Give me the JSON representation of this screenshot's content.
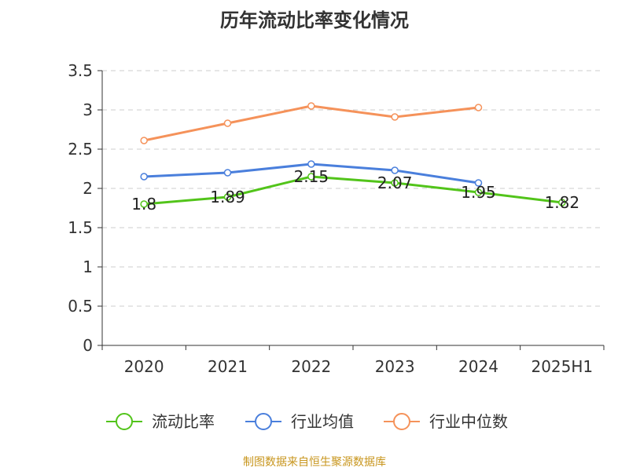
{
  "chart_data": {
    "type": "line",
    "title": "历年流动比率变化情况",
    "categories": [
      "2020",
      "2021",
      "2022",
      "2023",
      "2024",
      "2025H1"
    ],
    "ylim": [
      0,
      3.5
    ],
    "yticks": [
      "0",
      "0.5",
      "1",
      "1.5",
      "2",
      "2.5",
      "3",
      "3.5"
    ],
    "grid": true,
    "legend_position": "bottom",
    "series": [
      {
        "name": "流动比率",
        "color": "#52c41a",
        "values": [
          1.8,
          1.89,
          2.15,
          2.07,
          1.95,
          1.82
        ],
        "labels": [
          "1.8",
          "1.89",
          "2.15",
          "2.07",
          "1.95",
          "1.82"
        ]
      },
      {
        "name": "行业均值",
        "color": "#4a7fdc",
        "values": [
          2.15,
          2.2,
          2.31,
          2.23,
          2.07,
          null
        ]
      },
      {
        "name": "行业中位数",
        "color": "#f5925a",
        "values": [
          2.61,
          2.83,
          3.05,
          2.91,
          3.03,
          null
        ]
      }
    ]
  },
  "source_text": "制图数据来自恒生聚源数据库"
}
